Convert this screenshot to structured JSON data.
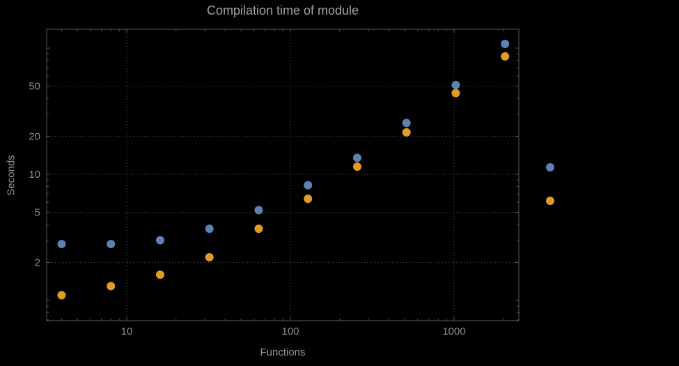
{
  "chart_data": {
    "type": "scatter",
    "title": "Compilation time of module",
    "xlabel": "Functions",
    "ylabel": "Seconds",
    "x_scale": "log",
    "y_scale": "log",
    "x_range": [
      3.2,
      2500
    ],
    "y_range": [
      0.7,
      140
    ],
    "x_tick_labels": [
      10,
      100,
      1000
    ],
    "y_tick_labels": [
      2,
      5,
      10,
      20,
      50
    ],
    "grid": "dotted lines at labeled ticks",
    "legend_position": "right-outside, markers only (no visible text)",
    "x": [
      4,
      8,
      16,
      32,
      64,
      128,
      256,
      512,
      1024,
      2048
    ],
    "series": [
      {
        "name": "series-blue",
        "color": "#5E81B5",
        "values": [
          2.8,
          2.8,
          3.0,
          3.7,
          5.2,
          8.2,
          13.5,
          25.5,
          51,
          108
        ]
      },
      {
        "name": "series-orange",
        "color": "#E19C24",
        "values": [
          1.1,
          1.3,
          1.6,
          2.2,
          3.7,
          6.4,
          11.5,
          21.5,
          44,
          86
        ]
      }
    ],
    "legend_markers": [
      {
        "color": "#5E81B5"
      },
      {
        "color": "#E19C24"
      }
    ],
    "colors": {
      "background": "#000000",
      "frame": "#5a5a5a",
      "grid": "#4e4e4e",
      "title_text": "#a3a3a3",
      "tick_text": "#8f8f8f"
    }
  }
}
